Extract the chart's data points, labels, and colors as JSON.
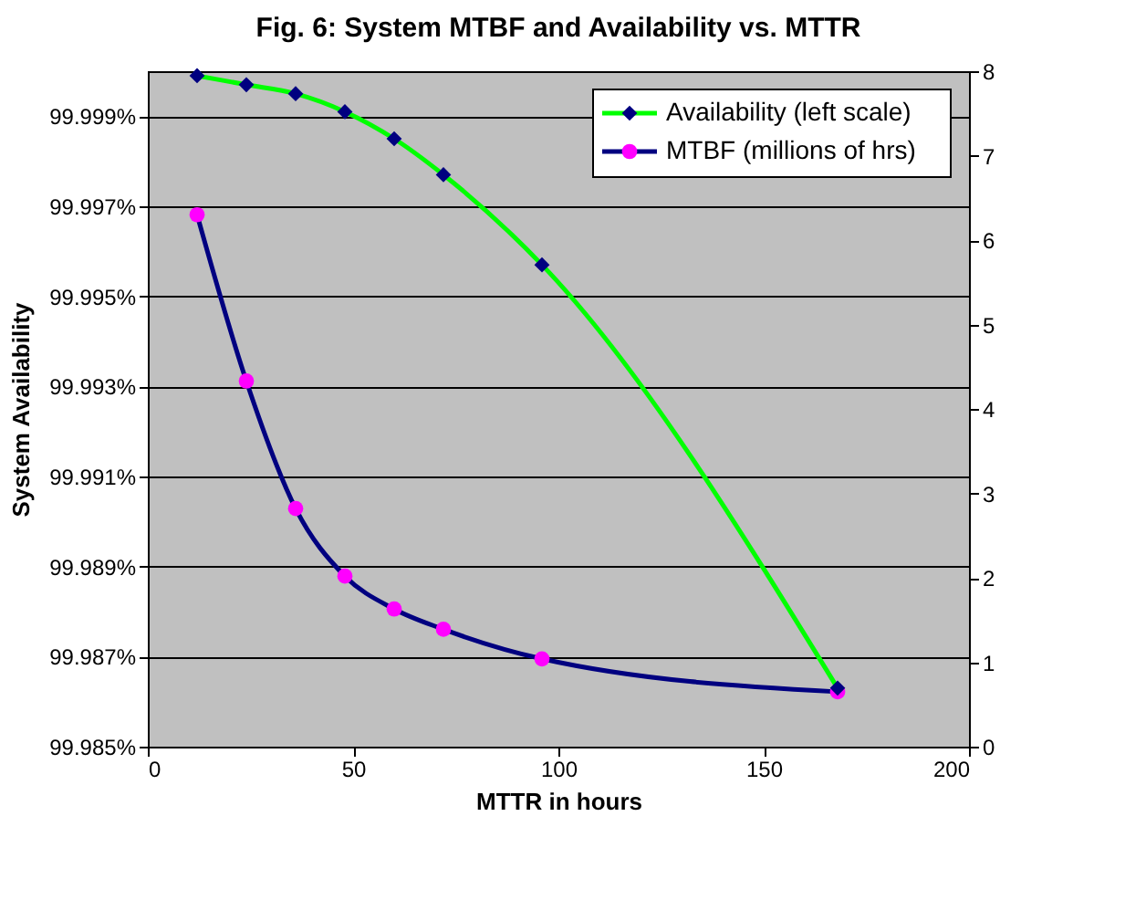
{
  "chart_data": {
    "type": "line",
    "title": "Fig. 6: System MTBF and Availability vs. MTTR",
    "xlabel": "MTTR in hours",
    "ylabel": "System Availability",
    "x": [
      12,
      24,
      36,
      48,
      60,
      72,
      96,
      168
    ],
    "series": [
      {
        "name": "Availability (left scale)",
        "color": "#00ff00",
        "colors": [
          "#000080",
          "#000080",
          "#000080",
          "#000080",
          "#000080",
          "#000080",
          "#000080",
          "#000080"
        ],
        "marker": "diamond",
        "values": [
          99.9999,
          99.9997,
          99.9995,
          99.9991,
          99.9985,
          99.9977,
          99.9957,
          99.9863
        ]
      },
      {
        "name": "MTBF (millions of hrs)",
        "color": "#000080",
        "colors": [
          "#ff00ff",
          "#ff00ff",
          "#ff00ff",
          "#ff00ff",
          "#ff00ff",
          "#ff00ff",
          "#ff00ff",
          "#ff00ff"
        ],
        "marker": "circle",
        "axis": "y2",
        "values": [
          6.3,
          4.33,
          2.82,
          2.02,
          1.63,
          1.39,
          1.04,
          0.65
        ]
      }
    ],
    "xlim": [
      0,
      200
    ],
    "xticks": [
      0,
      50,
      100,
      150,
      200
    ],
    "ylim": [
      99.985,
      100.0
    ],
    "yticks": [
      {
        "value": 99.985,
        "label": "99.985%"
      },
      {
        "value": 99.987,
        "label": "99.987%"
      },
      {
        "value": 99.989,
        "label": "99.989%"
      },
      {
        "value": 99.991,
        "label": "99.991%"
      },
      {
        "value": 99.993,
        "label": "99.993%"
      },
      {
        "value": 99.995,
        "label": "99.995%"
      },
      {
        "value": 99.997,
        "label": "99.997%"
      },
      {
        "value": 99.999,
        "label": "99.999%"
      }
    ],
    "y2lim": [
      0,
      8
    ],
    "y2ticks": [
      0,
      1,
      2,
      3,
      4,
      5,
      6,
      7,
      8
    ],
    "grid": "y",
    "legend": "top right"
  }
}
